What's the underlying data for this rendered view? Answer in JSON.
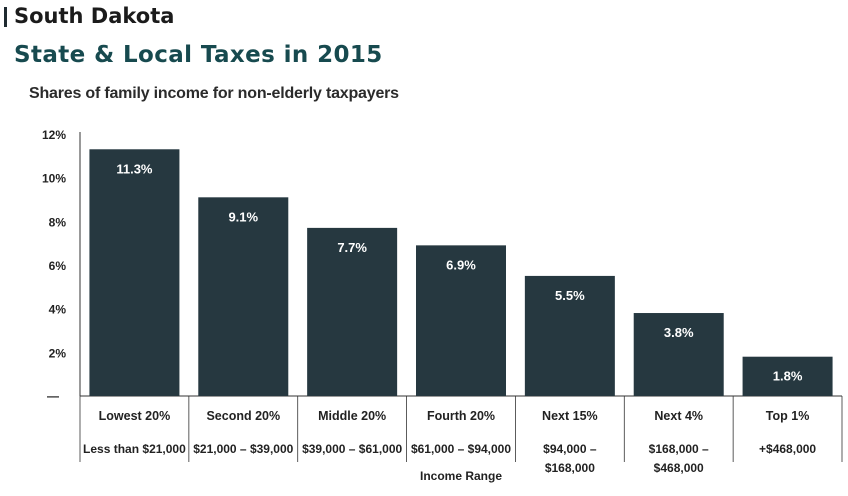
{
  "header": {
    "state": "South Dakota",
    "title": "State & Local Taxes in 2015",
    "subtitle": "Shares of family income for non-elderly taxpayers"
  },
  "colors": {
    "bar": "#263840",
    "bar_label": "#ffffff",
    "axis": "#333333",
    "text": "#222222"
  },
  "chart_data": {
    "type": "bar",
    "categories": [
      "Lowest 20%",
      "Second 20%",
      "Middle 20%",
      "Fourth 20%",
      "Next 15%",
      "Next 4%",
      "Top 1%"
    ],
    "income_ranges": [
      [
        "Less than $21,000"
      ],
      [
        "$21,000 – $39,000"
      ],
      [
        "$39,000 – $61,000"
      ],
      [
        "$61,000 – $94,000"
      ],
      [
        "$94,000 –",
        "$168,000"
      ],
      [
        "$168,000 –",
        "$468,000"
      ],
      [
        "+$468,000"
      ]
    ],
    "values": [
      11.3,
      9.1,
      7.7,
      6.9,
      5.5,
      3.8,
      1.8
    ],
    "value_labels": [
      "11.3%",
      "9.1%",
      "7.7%",
      "6.9%",
      "5.5%",
      "3.8%",
      "1.8%"
    ],
    "xlabel": "Income Range",
    "ylabel": "",
    "ylim": [
      0,
      12
    ],
    "yticks": [
      2,
      4,
      6,
      8,
      10,
      12
    ],
    "ytick_labels": [
      "2%",
      "4%",
      "6%",
      "8%",
      "10%",
      "12%"
    ],
    "zero_label": "—",
    "grid": false
  }
}
